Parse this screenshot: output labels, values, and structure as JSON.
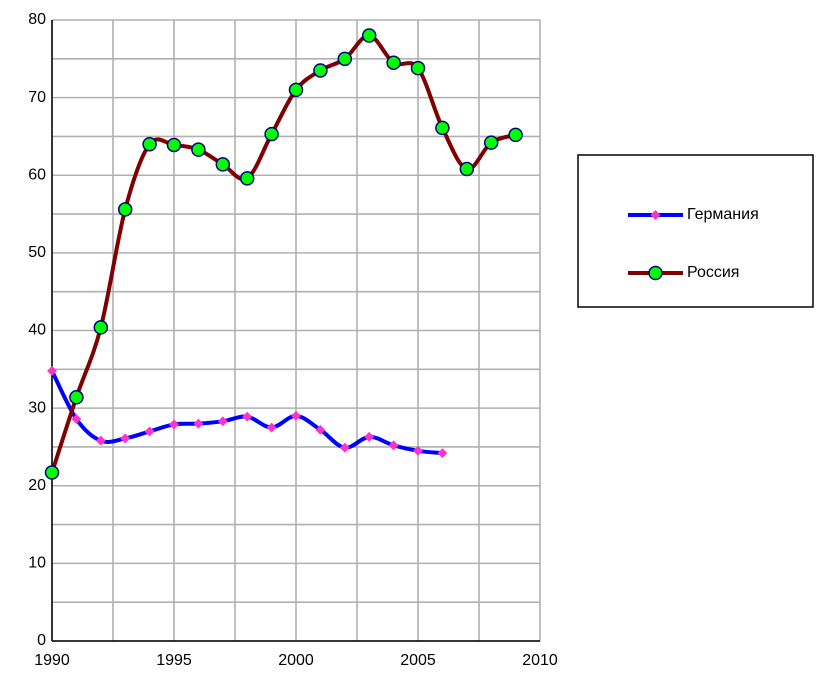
{
  "chart_data": {
    "type": "line",
    "x": [
      1990,
      1991,
      1992,
      1993,
      1994,
      1995,
      1996,
      1997,
      1998,
      1999,
      2000,
      2001,
      2002,
      2003,
      2004,
      2005,
      2006,
      2007,
      2008,
      2009
    ],
    "series": [
      {
        "name": "Германия",
        "color": "#0000ff",
        "marker_color": "#ff33cc",
        "values": [
          34.8,
          28.6,
          25.8,
          26.1,
          27.0,
          27.9,
          28.0,
          28.3,
          28.9,
          27.5,
          29.0,
          27.2,
          24.9,
          26.3,
          25.2,
          24.5,
          24.2,
          null,
          null,
          null
        ]
      },
      {
        "name": "Россия",
        "color": "#800000",
        "marker_color": "#00ff00",
        "values": [
          21.7,
          31.4,
          40.4,
          55.6,
          64.0,
          63.9,
          63.3,
          61.4,
          59.6,
          65.3,
          71.0,
          73.5,
          75.0,
          78.0,
          74.5,
          73.8,
          66.1,
          60.8,
          64.2,
          65.2
        ]
      }
    ],
    "xlim": [
      1990,
      2010
    ],
    "xticks": [
      1990,
      1995,
      2000,
      2005,
      2010
    ],
    "xminor": [
      1992.5,
      1997.5,
      2002.5,
      2007.5
    ],
    "ylim": [
      0,
      80
    ],
    "yticks": [
      0,
      10,
      20,
      30,
      40,
      50,
      60,
      70,
      80
    ],
    "yminor": [
      5,
      15,
      25,
      35,
      45,
      55,
      65,
      75
    ],
    "grid": true,
    "legend": "right"
  }
}
